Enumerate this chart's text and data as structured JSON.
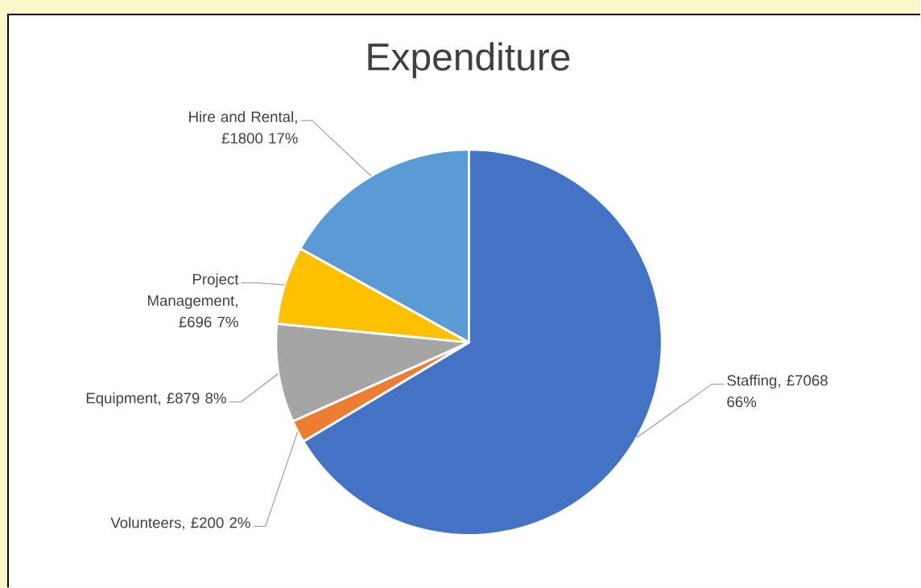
{
  "chart_data": {
    "type": "pie",
    "title": "Expenditure",
    "categories": [
      "Staffing",
      "Volunteers",
      "Equipment",
      "Project Management",
      "Hire and Rental"
    ],
    "values": [
      7068,
      200,
      879,
      696,
      1800
    ],
    "colors": [
      "#4472c4",
      "#ed7d31",
      "#a5a5a5",
      "#ffc000",
      "#5b9bd5"
    ],
    "value_labels": [
      ", £7068 66%",
      ", £200 2%",
      ", £879 8%",
      ", £696 7%",
      ", £1800 17%"
    ]
  }
}
